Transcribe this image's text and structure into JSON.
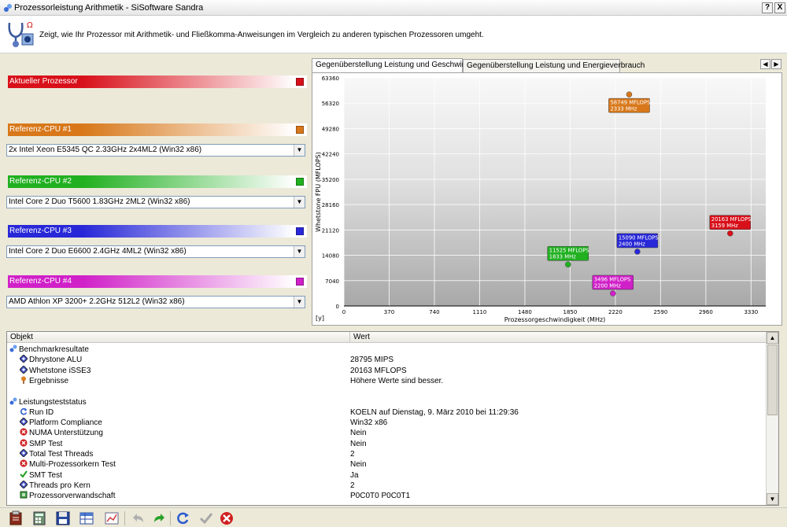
{
  "window": {
    "title": "Prozessorleistung Arithmetik - SiSoftware Sandra",
    "help_label": "?",
    "close_label": "X"
  },
  "header": {
    "description": "Zeigt, wie Ihr Prozessor mit Arithmetik- und Fließkomma-Anweisungen im Vergleich zu anderen typischen Prozessoren umgeht."
  },
  "references": [
    {
      "label": "Aktueller Prozessor",
      "color": "#d8101a",
      "select": ""
    },
    {
      "label": "Referenz-CPU #1",
      "color": "#d8781a",
      "select": "2x Intel Xeon E5345 QC 2.33GHz 2x4ML2 (Win32 x86)"
    },
    {
      "label": "Referenz-CPU #2",
      "color": "#20b020",
      "select": "Intel Core 2 Duo T5600 1.83GHz 2ML2 (Win32 x86)"
    },
    {
      "label": "Referenz-CPU #3",
      "color": "#2828d8",
      "select": "Intel Core 2 Duo E6600 2.4GHz 4ML2 (Win32 x86)"
    },
    {
      "label": "Referenz-CPU #4",
      "color": "#d020c8",
      "select": "AMD Athlon XP 3200+ 2.2GHz 512L2 (Win32 x86)"
    }
  ],
  "tabs": [
    {
      "label": "Gegenüberstellung Leistung und Geschwindigkeit",
      "active": true
    },
    {
      "label": "Gegenüberstellung Leistung und Energieverbrauch",
      "active": false
    }
  ],
  "chart_data": {
    "type": "scatter",
    "xlabel": "Prozessorgeschwindigkeit (MHz)",
    "ylabel": "Whetstone FPU (MFLOPS)",
    "y_unit_marker": "[y]",
    "xlim": [
      0,
      3450
    ],
    "ylim": [
      0,
      63360
    ],
    "x_ticks": [
      0,
      370,
      740,
      1110,
      1480,
      1850,
      2220,
      2590,
      2960,
      3330
    ],
    "y_ticks": [
      0,
      7040,
      14080,
      21120,
      28160,
      35200,
      42240,
      49280,
      56320,
      63360
    ],
    "points": [
      {
        "x": 2333,
        "y": 58749,
        "label1": "58749 MFLOPS",
        "label2": "2333 MHz",
        "color": "#d8781a",
        "side": "below"
      },
      {
        "x": 3159,
        "y": 20163,
        "label1": "20163 MFLOPS",
        "label2": "3159 MHz",
        "color": "#d8101a",
        "side": "above"
      },
      {
        "x": 2400,
        "y": 15090,
        "label1": "15090 MFLOPS",
        "label2": "2400 MHz",
        "color": "#2828d8",
        "side": "above"
      },
      {
        "x": 1833,
        "y": 11525,
        "label1": "11525 MFLOPS",
        "label2": "1833 MHz",
        "color": "#20b020",
        "side": "above"
      },
      {
        "x": 2200,
        "y": 3496,
        "label1": "3496 MFLOPS",
        "label2": "2200 MHz",
        "color": "#d020c8",
        "side": "above"
      }
    ]
  },
  "table": {
    "col_object": "Objekt",
    "col_value": "Wert",
    "rows": [
      {
        "kind": "group",
        "name": "Benchmarkresultate",
        "value": "",
        "icon": "group-icon"
      },
      {
        "kind": "item",
        "name": "Dhrystone ALU",
        "value": "28795 MIPS",
        "icon": "diamond-icon"
      },
      {
        "kind": "item",
        "name": "Whetstone iSSE3",
        "value": "20163 MFLOPS",
        "icon": "diamond-icon"
      },
      {
        "kind": "item",
        "name": "Ergebnisse",
        "value": "Höhere Werte sind besser.",
        "icon": "pin-icon"
      },
      {
        "kind": "blank",
        "name": "",
        "value": "",
        "icon": ""
      },
      {
        "kind": "group",
        "name": "Leistungsteststatus",
        "value": "",
        "icon": "group-icon"
      },
      {
        "kind": "item",
        "name": "Run ID",
        "value": "KOELN auf Dienstag, 9. März 2010 bei 11:29:36",
        "icon": "refresh-icon"
      },
      {
        "kind": "item",
        "name": "Platform Compliance",
        "value": "Win32 x86",
        "icon": "diamond-icon"
      },
      {
        "kind": "item",
        "name": "NUMA Unterstützung",
        "value": "Nein",
        "icon": "x-icon"
      },
      {
        "kind": "item",
        "name": "SMP Test",
        "value": "Nein",
        "icon": "x-icon"
      },
      {
        "kind": "item",
        "name": "Total Test Threads",
        "value": "2",
        "icon": "diamond-icon"
      },
      {
        "kind": "item",
        "name": "Multi-Prozessorkern Test",
        "value": "Nein",
        "icon": "x-icon"
      },
      {
        "kind": "item",
        "name": "SMT Test",
        "value": "Ja",
        "icon": "check-icon"
      },
      {
        "kind": "item",
        "name": "Threads pro Kern",
        "value": "2",
        "icon": "diamond-icon"
      },
      {
        "kind": "item",
        "name": "Prozessorverwandschaft",
        "value": "P0C0T0 P0C0T1",
        "icon": "chip-icon"
      }
    ]
  },
  "toolbar": {
    "buttons": [
      "report-icon",
      "calculator-icon",
      "save-icon",
      "table-icon",
      "chart-icon",
      "undo-icon",
      "redo-icon",
      "refresh-icon",
      "ok-icon",
      "cancel-icon"
    ]
  }
}
